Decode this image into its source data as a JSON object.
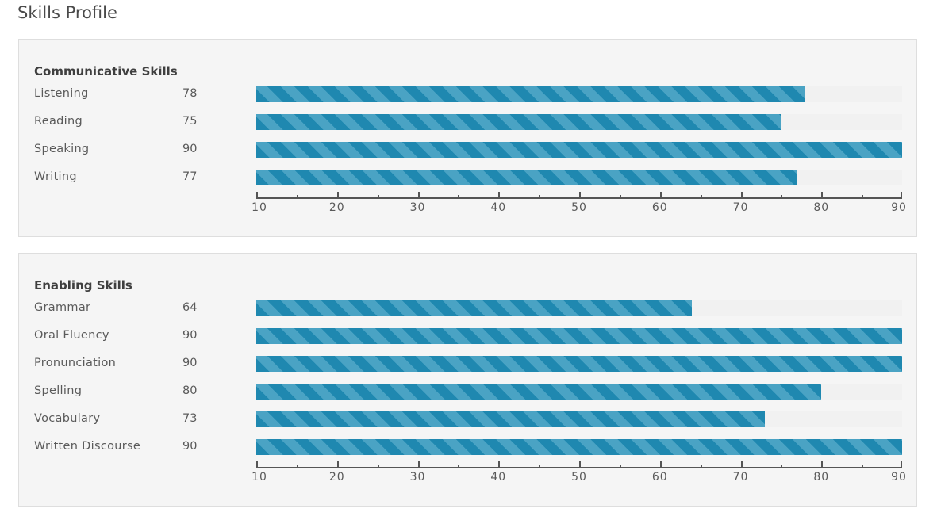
{
  "page": {
    "title": "Skills Profile"
  },
  "colors": {
    "bar": "#1f88b0",
    "bar_stripe": "#4aa3c4",
    "track": "#f1f1f1",
    "panel": "#f5f5f5"
  },
  "chart_data": [
    {
      "type": "bar",
      "orientation": "horizontal",
      "title": "Communicative Skills",
      "categories": [
        "Listening",
        "Reading",
        "Speaking",
        "Writing"
      ],
      "values": [
        78,
        75,
        90,
        77
      ],
      "xlim": [
        10,
        90
      ],
      "ticks": [
        "10",
        "20",
        "30",
        "40",
        "50",
        "60",
        "70",
        "80",
        "90"
      ]
    },
    {
      "type": "bar",
      "orientation": "horizontal",
      "title": "Enabling Skills",
      "categories": [
        "Grammar",
        "Oral Fluency",
        "Pronunciation",
        "Spelling",
        "Vocabulary",
        "Written Discourse"
      ],
      "values": [
        64,
        90,
        90,
        80,
        73,
        90
      ],
      "xlim": [
        10,
        90
      ],
      "ticks": [
        "10",
        "20",
        "30",
        "40",
        "50",
        "60",
        "70",
        "80",
        "90"
      ]
    }
  ]
}
